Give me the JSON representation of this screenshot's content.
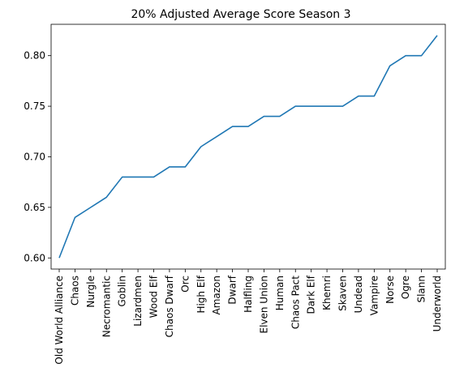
{
  "chart_data": {
    "type": "line",
    "title": "20% Adjusted Average Score Season 3",
    "xlabel": "",
    "ylabel": "",
    "categories": [
      "Old World Alliance",
      "Chaos",
      "Nurgle",
      "Necromantic",
      "Goblin",
      "Lizardmen",
      "Wood Elf",
      "Chaos Dwarf",
      "Orc",
      "High Elf",
      "Amazon",
      "Dwarf",
      "Halfling",
      "Elven Union",
      "Human",
      "Chaos Pact",
      "Dark Elf",
      "Khemri",
      "Skaven",
      "Undead",
      "Vampire",
      "Norse",
      "Ogre",
      "Slann",
      "Underworld"
    ],
    "series": [
      {
        "color": "#1f77b4",
        "values": [
          0.6,
          0.64,
          0.65,
          0.66,
          0.68,
          0.68,
          0.68,
          0.69,
          0.69,
          0.71,
          0.72,
          0.73,
          0.73,
          0.74,
          0.74,
          0.75,
          0.75,
          0.75,
          0.75,
          0.76,
          0.76,
          0.79,
          0.8,
          0.8,
          0.82
        ]
      }
    ],
    "ylim": [
      0.589,
      0.831
    ],
    "yticks": [
      0.6,
      0.65,
      0.7,
      0.75,
      0.8
    ],
    "ytick_labels": [
      "0.60",
      "0.65",
      "0.70",
      "0.75",
      "0.80"
    ],
    "grid": false,
    "legend": "none"
  }
}
